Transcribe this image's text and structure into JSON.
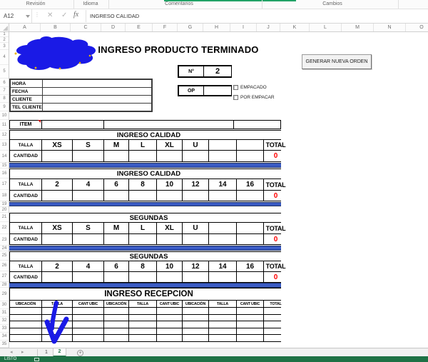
{
  "ribbon": {
    "groups": [
      "Revisión",
      "Idioma",
      "Comentarios",
      "Cambios"
    ]
  },
  "formula_bar": {
    "name_box": "A12",
    "cancel": "✕",
    "enter": "✓",
    "fx_label": "fx",
    "formula": "INGRESO CALIDAD"
  },
  "grid": {
    "column_headers": [
      "A",
      "B",
      "C",
      "D",
      "E",
      "F",
      "G",
      "H",
      "I",
      "J",
      "K",
      "L",
      "M",
      "N",
      "O"
    ],
    "row_headers": [
      "1",
      "2",
      "3",
      "4",
      "5",
      "6",
      "7",
      "8",
      "9",
      "10",
      "11",
      "12",
      "13",
      "14",
      "15",
      "16",
      "17",
      "18",
      "19",
      "20",
      "21",
      "22",
      "23",
      "24",
      "25",
      "26",
      "27",
      "28",
      "29",
      "30",
      "31",
      "32",
      "33",
      "34",
      "35"
    ]
  },
  "sheet": {
    "title": "INGRESO PRODUCTO TERMINADO",
    "generate_button": "GENERAR NUEVA ORDEN",
    "order_number": {
      "label": "N°",
      "value": "2"
    },
    "op": {
      "label": "OP",
      "value": ""
    },
    "checkboxes": [
      {
        "label": "EMPACADO",
        "checked": false
      },
      {
        "label": "POR EMPACAR",
        "checked": false
      }
    ],
    "client_info": {
      "rows": [
        {
          "label": "HORA",
          "value": ""
        },
        {
          "label": "FECHA",
          "value": ""
        },
        {
          "label": "CLIENTE",
          "value": ""
        },
        {
          "label": "TEL CLIENTE",
          "value": ""
        }
      ]
    },
    "item": {
      "label": "ITEM"
    },
    "size_tables": [
      {
        "header": "INGRESO CALIDAD",
        "row_label": "TALLA",
        "qty_label": "CANTIDAD",
        "sizes": [
          "XS",
          "S",
          "M",
          "L",
          "XL",
          "U",
          "",
          ""
        ],
        "total_label": "TOTAL",
        "total": "0"
      },
      {
        "header": "INGRESO CALIDAD",
        "row_label": "TALLA",
        "qty_label": "CANTIDAD",
        "sizes": [
          "2",
          "4",
          "6",
          "8",
          "10",
          "12",
          "14",
          "16"
        ],
        "total_label": "TOTAL",
        "total": "0"
      },
      {
        "header": "SEGUNDAS",
        "row_label": "TALLA",
        "qty_label": "CANTIDAD",
        "sizes": [
          "XS",
          "S",
          "M",
          "L",
          "XL",
          "U",
          "",
          ""
        ],
        "total_label": "TOTAL",
        "total": "0"
      },
      {
        "header": "SEGUNDAS",
        "row_label": "TALLA",
        "qty_label": "CANTIDAD",
        "sizes": [
          "2",
          "4",
          "6",
          "8",
          "10",
          "12",
          "14",
          "16"
        ],
        "total_label": "TOTAL",
        "total": "0"
      }
    ],
    "reception": {
      "header": "INGRESO RECEPCION",
      "columns": [
        "UBICACIÓN",
        "TALLA",
        "CANT UBIC",
        "UBICACIÓN",
        "TALLA",
        "CANT UBIC",
        "UBICACIÓN",
        "TALLA",
        "CANT UBIC",
        "TOTAL"
      ],
      "body_rows": 5
    }
  },
  "sheet_tabs": {
    "nav_left": "◂",
    "nav_right": "▸",
    "items": [
      {
        "label": "1",
        "active": false
      },
      {
        "label": "2",
        "active": true
      }
    ],
    "add": "+"
  },
  "status_bar": {
    "label": "LISTO"
  },
  "colors": {
    "excel_green": "#1e7145",
    "active_tab_green": "#217346",
    "separator_blue": "#3a5bc4",
    "total_red": "#ff0000",
    "annotation_blue": "#1a1ae6"
  }
}
